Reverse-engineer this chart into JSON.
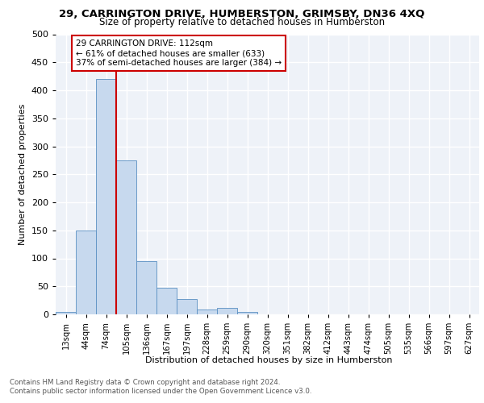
{
  "title1": "29, CARRINGTON DRIVE, HUMBERSTON, GRIMSBY, DN36 4XQ",
  "title2": "Size of property relative to detached houses in Humberston",
  "xlabel": "Distribution of detached houses by size in Humberston",
  "ylabel": "Number of detached properties",
  "footnote1": "Contains HM Land Registry data © Crown copyright and database right 2024.",
  "footnote2": "Contains public sector information licensed under the Open Government Licence v3.0.",
  "annotation_line1": "29 CARRINGTON DRIVE: 112sqm",
  "annotation_line2": "← 61% of detached houses are smaller (633)",
  "annotation_line3": "37% of semi-detached houses are larger (384) →",
  "bar_labels": [
    "13sqm",
    "44sqm",
    "74sqm",
    "105sqm",
    "136sqm",
    "167sqm",
    "197sqm",
    "228sqm",
    "259sqm",
    "290sqm",
    "320sqm",
    "351sqm",
    "382sqm",
    "412sqm",
    "443sqm",
    "474sqm",
    "505sqm",
    "535sqm",
    "566sqm",
    "597sqm",
    "627sqm"
  ],
  "bar_values": [
    5,
    150,
    420,
    275,
    95,
    48,
    27,
    8,
    11,
    4,
    0,
    0,
    0,
    0,
    0,
    0,
    0,
    0,
    0,
    0,
    0
  ],
  "bar_color": "#c7d9ee",
  "bar_edge_color": "#5a8fc2",
  "vline_color": "#cc0000",
  "bg_color": "#eef2f8",
  "grid_color": "#ffffff",
  "annotation_box_color": "#cc0000",
  "ylim": [
    0,
    500
  ],
  "yticks": [
    0,
    50,
    100,
    150,
    200,
    250,
    300,
    350,
    400,
    450,
    500
  ]
}
